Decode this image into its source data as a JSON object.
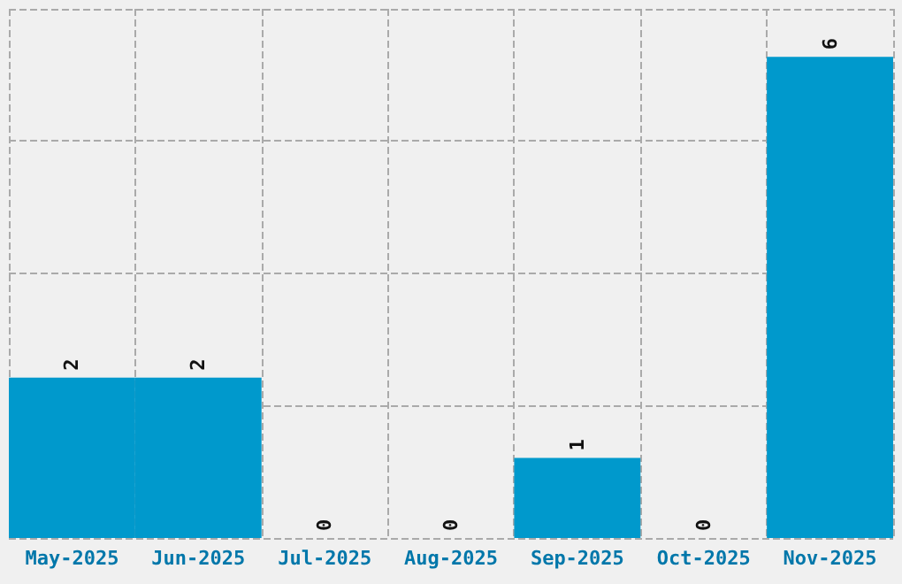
{
  "chart_data": {
    "type": "bar",
    "categories": [
      "May-2025",
      "Jun-2025",
      "Jul-2025",
      "Aug-2025",
      "Sep-2025",
      "Oct-2025",
      "Nov-2025"
    ],
    "values": [
      2,
      2,
      0,
      0,
      1,
      0,
      6
    ],
    "color": "#0099cc",
    "ylim": [
      0,
      6.6
    ],
    "yticks": [
      {
        "value": 0,
        "label": null
      },
      {
        "value": 1.65,
        "label": null
      },
      {
        "value": 3.3,
        "label": null
      },
      {
        "value": 4.95,
        "label": null
      },
      {
        "value": 6.6,
        "label": null
      }
    ],
    "tick_labels": "x",
    "grid": true,
    "data_labels": true
  }
}
